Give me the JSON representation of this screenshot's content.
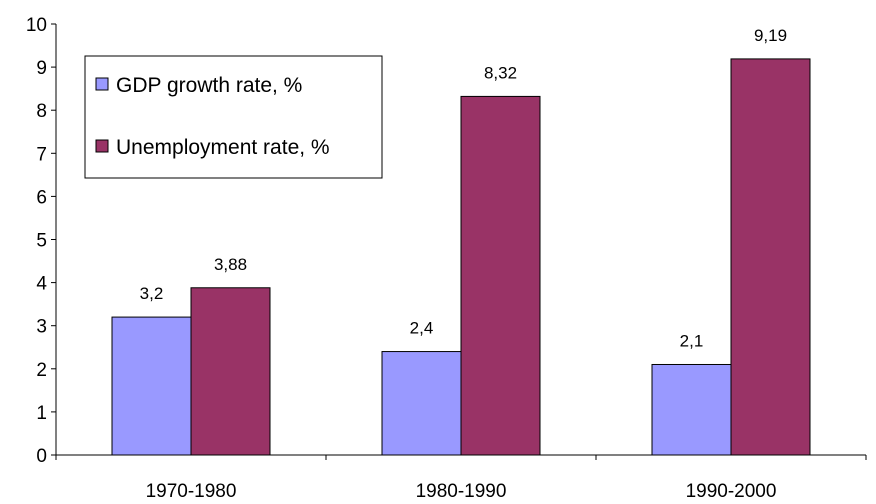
{
  "chart_data": {
    "type": "bar",
    "categories": [
      "1970-1980",
      "1980-1990",
      "1990-2000"
    ],
    "series": [
      {
        "name": "GDP growth rate, %",
        "values": [
          3.2,
          2.4,
          2.1
        ],
        "labels": [
          "3,2",
          "2,4",
          "2,1"
        ],
        "color": "#9999ff"
      },
      {
        "name": "Unemployment rate, %",
        "values": [
          3.88,
          8.32,
          9.19
        ],
        "labels": [
          "3,88",
          "8,32",
          "9,19"
        ],
        "color": "#993366"
      }
    ],
    "ylim": [
      0,
      10
    ],
    "yticks": [
      "0",
      "1",
      "2",
      "3",
      "4",
      "5",
      "6",
      "7",
      "8",
      "9",
      "10"
    ],
    "grid": false,
    "legend_position": "top-left",
    "title": "",
    "xlabel": "",
    "ylabel": ""
  }
}
